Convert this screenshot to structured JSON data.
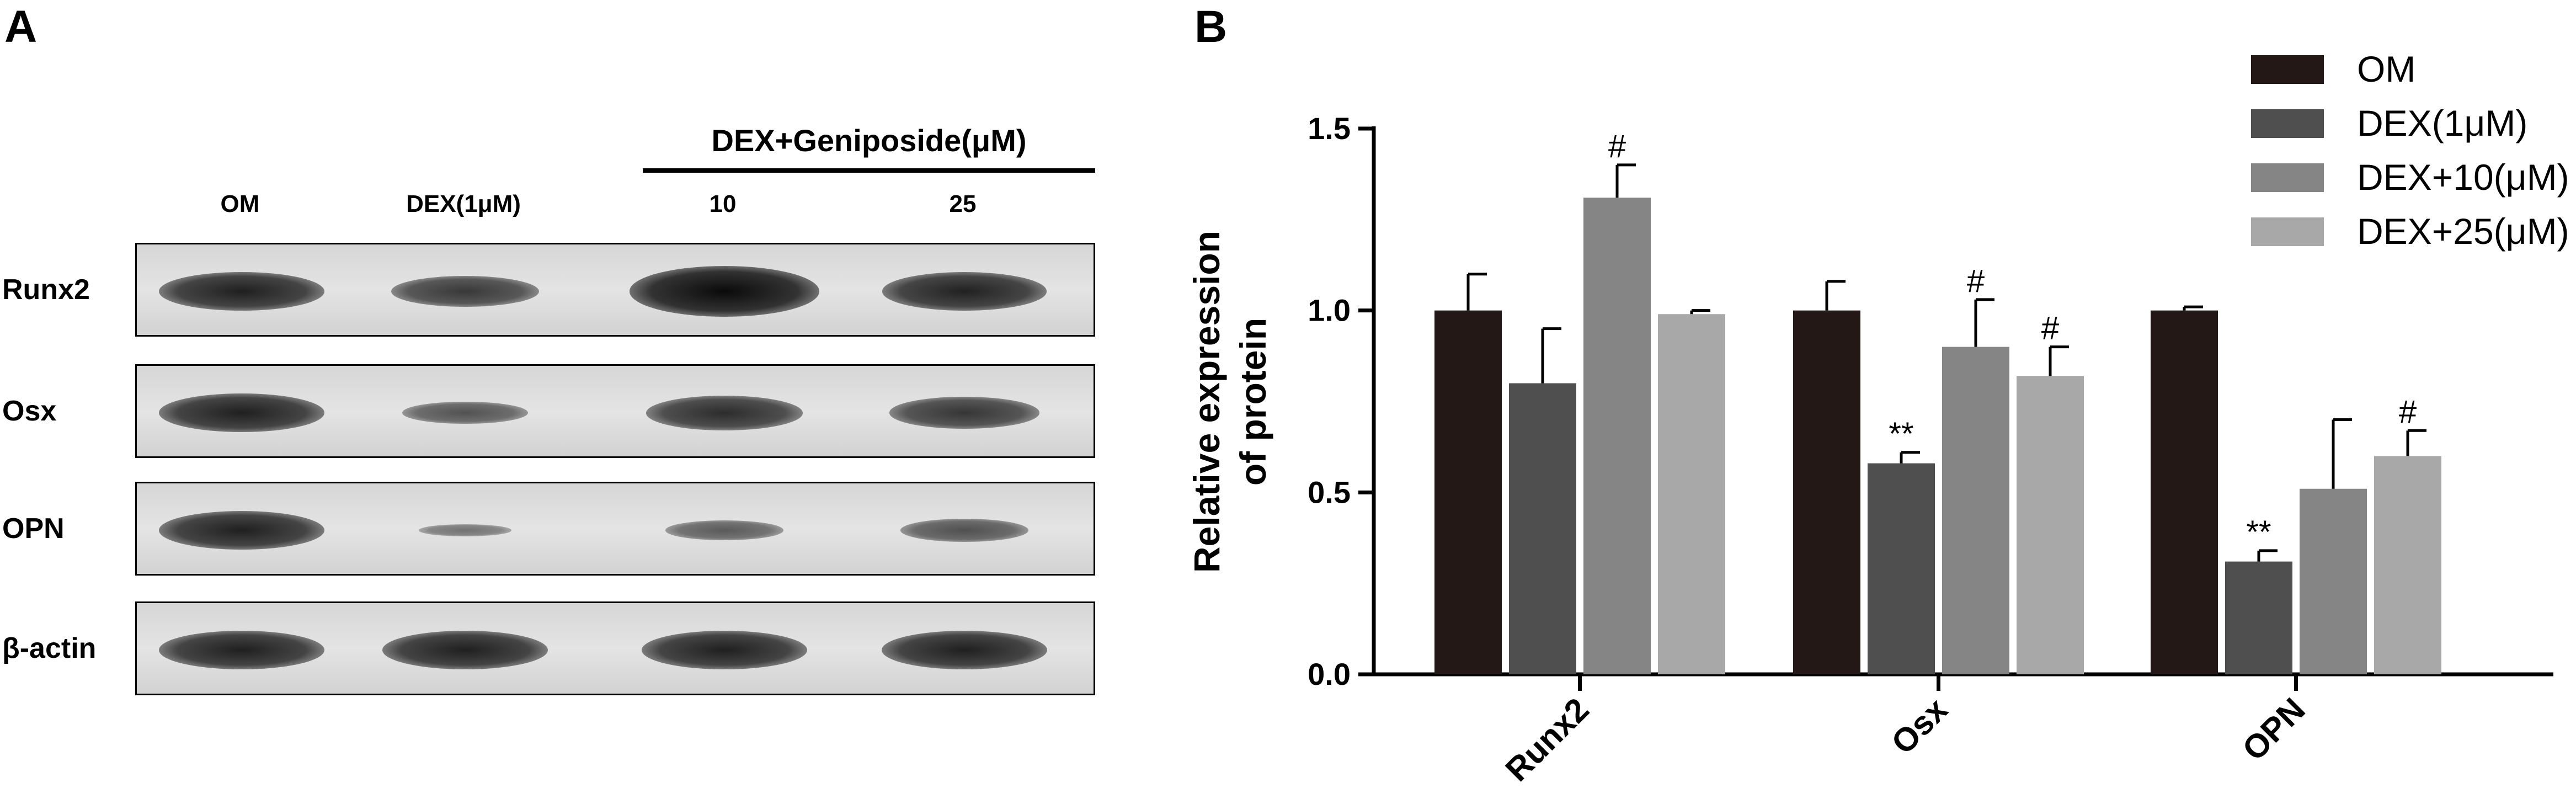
{
  "panels": {
    "a": "A",
    "b": "B"
  },
  "blot": {
    "group_label": "DEX+Geniposide(μM)",
    "lanes": [
      "OM",
      "DEX(1μM)",
      "10",
      "25"
    ],
    "rows": [
      {
        "label": "Runx2",
        "intensity": [
          1.0,
          0.8,
          1.31,
          0.99
        ]
      },
      {
        "label": "Osx",
        "intensity": [
          1.0,
          0.58,
          0.9,
          0.82
        ]
      },
      {
        "label": "OPN",
        "intensity": [
          1.0,
          0.31,
          0.51,
          0.6
        ]
      },
      {
        "label": "β-actin",
        "intensity": [
          1.0,
          1.0,
          1.0,
          1.0
        ]
      }
    ]
  },
  "chart_data": {
    "type": "bar",
    "categories": [
      "Runx2",
      "Osx",
      "OPN"
    ],
    "ylabel": "Relative expression of protein",
    "ylabel_lines": [
      "Relative expression",
      "of protein"
    ],
    "ylim": [
      0,
      1.5
    ],
    "yticks": [
      "0.0",
      "0.5",
      "1.0",
      "1.5"
    ],
    "grid": false,
    "legend_position": "top-right",
    "series": [
      {
        "name": "OM",
        "color": "#231815",
        "values": [
          1.0,
          1.0,
          1.0
        ],
        "errors": [
          0.1,
          0.08,
          0.01
        ],
        "annotations": [
          "",
          "",
          ""
        ]
      },
      {
        "name": "DEX(1μM)",
        "color": "#4f4f4f",
        "values": [
          0.8,
          0.58,
          0.31
        ],
        "errors": [
          0.15,
          0.03,
          0.03
        ],
        "annotations": [
          "",
          "**",
          "**"
        ]
      },
      {
        "name": "DEX+10(μM)",
        "color": "#858585",
        "values": [
          1.31,
          0.9,
          0.51
        ],
        "errors": [
          0.09,
          0.13,
          0.19
        ],
        "annotations": [
          "#",
          "#",
          ""
        ]
      },
      {
        "name": "DEX+25(μM)",
        "color": "#a8a8a8",
        "values": [
          0.99,
          0.82,
          0.6
        ],
        "errors": [
          0.01,
          0.08,
          0.07
        ],
        "annotations": [
          "",
          "#",
          "#"
        ]
      }
    ]
  }
}
